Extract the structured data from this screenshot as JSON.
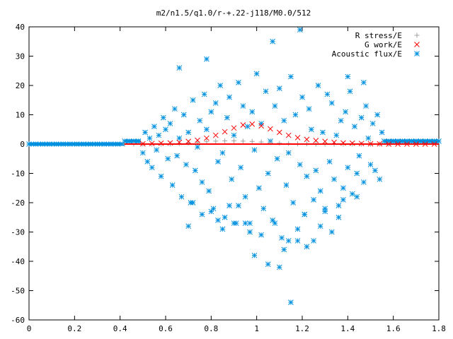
{
  "chart_data": {
    "type": "scatter",
    "title": "m2/n1.5/q1.0/r-+.22-j118/M0.0/512",
    "xlabel": "",
    "ylabel": "",
    "xlim": [
      0,
      1.8
    ],
    "ylim": [
      -60,
      40
    ],
    "x_ticks": [
      "0",
      "0.2",
      "0.4",
      "0.6",
      "0.8",
      "1",
      "1.2",
      "1.4",
      "1.6",
      "1.8"
    ],
    "y_ticks": [
      "40",
      "30",
      "20",
      "10",
      "0",
      "-10",
      "-20",
      "-30",
      "-40",
      "-50",
      "-60"
    ],
    "grid": false,
    "legend_position": "top-right",
    "series": [
      {
        "name": "R stress/E",
        "marker": "plus",
        "color": "#a0a0a0",
        "x": [
          0.42,
          0.46,
          0.5,
          0.54,
          0.58,
          0.62,
          0.66,
          0.7,
          0.74,
          0.78,
          0.82,
          0.86,
          0.9,
          0.94,
          0.98,
          1.02,
          1.06,
          1.1,
          1.14,
          1.18,
          1.22,
          1.26,
          1.3,
          1.34,
          1.38,
          1.42,
          1.46,
          1.5,
          1.54,
          1.58
        ],
        "y": [
          0.0,
          0.0,
          0.0,
          0.0,
          0.0,
          0.1,
          0.2,
          0.4,
          0.6,
          0.8,
          1.0,
          1.1,
          1.1,
          1.0,
          0.9,
          0.7,
          0.5,
          0.3,
          0.2,
          0.1,
          0.1,
          0.0,
          0.0,
          0.0,
          0.0,
          0.0,
          0.0,
          0.0,
          0.0,
          0.0
        ]
      },
      {
        "name": "G work/E",
        "marker": "cross",
        "color": "#ff0000",
        "x": [
          0.5,
          0.54,
          0.58,
          0.62,
          0.66,
          0.7,
          0.74,
          0.78,
          0.82,
          0.86,
          0.9,
          0.94,
          0.98,
          1.02,
          1.06,
          1.1,
          1.14,
          1.18,
          1.22,
          1.26,
          1.3,
          1.34,
          1.38,
          1.42,
          1.46,
          1.5,
          1.54,
          1.58,
          1.62,
          1.66,
          1.7,
          1.74,
          1.78
        ],
        "y": [
          0.1,
          0.2,
          0.3,
          0.4,
          0.6,
          0.9,
          1.3,
          2.0,
          3.0,
          4.2,
          5.5,
          6.5,
          6.8,
          6.2,
          5.2,
          4.0,
          3.0,
          2.2,
          1.6,
          1.2,
          0.9,
          0.6,
          0.4,
          0.3,
          0.2,
          0.1,
          0.1,
          0.0,
          0.0,
          0.0,
          0.0,
          0.0,
          0.0
        ]
      },
      {
        "name": "Acoustic flux/E",
        "marker": "star",
        "color": "#0090e0",
        "x": [
          0.0,
          0.03,
          0.06,
          0.09,
          0.12,
          0.15,
          0.18,
          0.21,
          0.24,
          0.27,
          0.3,
          0.33,
          0.36,
          0.39,
          0.42,
          0.44,
          0.46,
          0.48,
          1.56,
          1.58,
          1.6,
          1.62,
          1.64,
          1.66,
          1.68,
          1.7,
          1.72,
          1.74,
          1.76,
          1.78,
          1.8,
          0.5,
          0.51,
          0.52,
          0.53,
          0.54,
          0.55,
          0.56,
          0.57,
          0.58,
          0.59,
          0.6,
          0.61,
          0.62,
          0.63,
          0.64,
          0.65,
          0.66,
          0.67,
          0.68,
          0.69,
          0.7,
          0.71,
          0.72,
          0.73,
          0.74,
          0.75,
          0.76,
          0.77,
          0.78,
          0.79,
          0.8,
          0.81,
          0.82,
          0.83,
          0.84,
          0.85,
          0.86,
          0.87,
          0.88,
          0.89,
          0.9,
          0.91,
          0.92,
          0.93,
          0.94,
          0.95,
          0.96,
          0.97,
          0.98,
          0.99,
          1.0,
          1.01,
          1.02,
          1.03,
          1.04,
          1.05,
          1.06,
          1.07,
          1.08,
          1.09,
          1.1,
          1.11,
          1.12,
          1.13,
          1.14,
          1.15,
          1.16,
          1.17,
          1.18,
          1.19,
          1.2,
          1.21,
          1.22,
          1.23,
          1.24,
          1.25,
          1.26,
          1.27,
          1.28,
          1.29,
          1.3,
          1.31,
          1.32,
          1.33,
          1.34,
          1.35,
          1.36,
          1.37,
          1.38,
          1.39,
          1.4,
          1.41,
          1.42,
          1.43,
          1.44,
          1.45,
          1.46,
          1.47,
          1.48,
          1.49,
          1.5,
          1.51,
          1.52,
          1.53,
          1.54,
          1.55,
          0.66,
          0.78,
          0.85,
          0.99,
          1.07,
          1.1,
          1.19,
          1.22,
          1.15,
          1.02,
          0.88,
          0.95,
          1.05,
          1.25,
          1.33,
          1.4,
          1.47,
          0.72,
          0.8,
          0.92,
          1.12,
          1.18,
          1.28,
          1.36,
          1.44,
          0.7,
          0.76,
          0.83,
          0.9,
          0.97,
          1.08,
          1.14,
          1.21,
          1.3,
          1.38
        ],
        "y": [
          0,
          0,
          0,
          0,
          0,
          0,
          0,
          0,
          0,
          0,
          0,
          0,
          0,
          0,
          1,
          1,
          1,
          1,
          1,
          1,
          1,
          1,
          1,
          1,
          1,
          1,
          1,
          1,
          1,
          1,
          1,
          -3,
          4,
          -6,
          2,
          -8,
          6,
          -2,
          3,
          -11,
          9,
          5,
          -5,
          7,
          -14,
          12,
          -4,
          2,
          -18,
          10,
          -7,
          4,
          -20,
          15,
          -9,
          -1,
          8,
          -13,
          17,
          5,
          -16,
          11,
          -22,
          14,
          -6,
          20,
          -3,
          -25,
          9,
          16,
          -12,
          3,
          -27,
          21,
          -8,
          13,
          -18,
          6,
          -30,
          11,
          -2,
          24,
          -15,
          7,
          -22,
          18,
          -10,
          1,
          -26,
          13,
          -5,
          19,
          -32,
          8,
          -14,
          -3,
          23,
          -20,
          10,
          -29,
          -7,
          16,
          -24,
          -11,
          12,
          5,
          -19,
          -9,
          20,
          -16,
          4,
          -23,
          17,
          -6,
          14,
          -12,
          3,
          -21,
          8,
          -15,
          11,
          -8,
          18,
          -17,
          6,
          -10,
          -4,
          9,
          -13,
          13,
          2,
          -7,
          7,
          -9,
          10,
          -12,
          4,
          26,
          29,
          -29,
          -38,
          35,
          -42,
          39,
          -35,
          -54,
          -31,
          -21,
          -27,
          -41,
          -33,
          -30,
          23,
          21,
          -20,
          -23,
          -21,
          -36,
          -33,
          -28,
          -25,
          -18,
          -28,
          -24,
          -26,
          -27,
          -27,
          -27,
          -33,
          -24,
          -22,
          -19
        ]
      }
    ]
  }
}
